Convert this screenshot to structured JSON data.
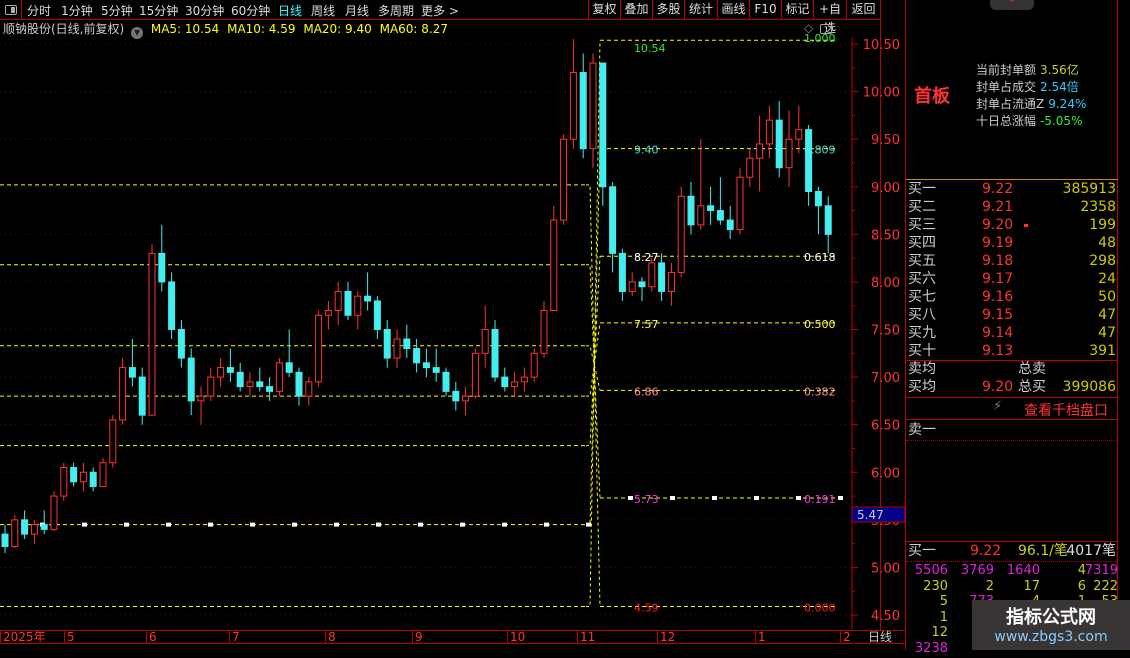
{
  "toolbar": {
    "tabs": [
      "分时",
      "1分钟",
      "5分钟",
      "15分钟",
      "30分钟",
      "60分钟",
      "日线",
      "周线",
      "月线",
      "多周期",
      "更多 >"
    ],
    "active_tab": "日线",
    "buttons": [
      "复权",
      "叠加",
      "多股",
      "统计",
      "画线",
      "F10",
      "标记",
      "+自选",
      "返回"
    ]
  },
  "info": {
    "title": "顺钠股份(日线,前复权)",
    "ma5": "MA5: 10.54",
    "ma10": "MA10: 4.59",
    "ma20": "MA20: 9.40",
    "ma60": "MA60: 8.27"
  },
  "colors": {
    "up": "#ff3333",
    "down": "#44eeee",
    "fib": "#ffff00",
    "axis": "#bb0000",
    "grid": "#660000"
  },
  "chart_data": {
    "type": "candlestick",
    "ylim": [
      4.4,
      10.65
    ],
    "yticks": [
      "10.50",
      "10.00",
      "9.50",
      "9.00",
      "8.50",
      "8.00",
      "7.50",
      "7.00",
      "6.50",
      "6.00",
      "5.50",
      "5.00",
      "4.50"
    ],
    "xticks": [
      "2025年",
      "5",
      "6",
      "7",
      "8",
      "9",
      "10",
      "11",
      "12",
      "1",
      "2"
    ],
    "period_label": "日线",
    "current_price_tag": "5.47",
    "ohlc": [
      [
        5.35,
        5.45,
        5.15,
        5.22
      ],
      [
        5.22,
        5.55,
        5.2,
        5.5
      ],
      [
        5.5,
        5.6,
        5.3,
        5.35
      ],
      [
        5.35,
        5.5,
        5.25,
        5.45
      ],
      [
        5.45,
        5.6,
        5.35,
        5.4
      ],
      [
        5.4,
        5.8,
        5.38,
        5.75
      ],
      [
        5.75,
        6.1,
        5.7,
        6.05
      ],
      [
        6.05,
        6.1,
        5.85,
        5.9
      ],
      [
        5.9,
        6.1,
        5.8,
        6.0
      ],
      [
        6.0,
        6.05,
        5.8,
        5.85
      ],
      [
        5.85,
        6.15,
        5.85,
        6.1
      ],
      [
        6.1,
        6.6,
        6.05,
        6.55
      ],
      [
        6.55,
        7.2,
        6.5,
        7.1
      ],
      [
        7.1,
        7.4,
        6.9,
        7.0
      ],
      [
        7.0,
        7.1,
        6.5,
        6.6
      ],
      [
        6.6,
        8.4,
        6.6,
        8.3
      ],
      [
        8.3,
        8.6,
        7.9,
        8.0
      ],
      [
        8.0,
        8.1,
        7.4,
        7.5
      ],
      [
        7.5,
        7.6,
        7.1,
        7.2
      ],
      [
        7.2,
        7.3,
        6.6,
        6.75
      ],
      [
        6.75,
        6.9,
        6.5,
        6.8
      ],
      [
        6.8,
        7.1,
        6.75,
        7.0
      ],
      [
        7.0,
        7.2,
        6.9,
        7.1
      ],
      [
        7.1,
        7.3,
        6.95,
        7.05
      ],
      [
        7.05,
        7.15,
        6.85,
        6.9
      ],
      [
        6.9,
        7.05,
        6.8,
        6.95
      ],
      [
        6.95,
        7.1,
        6.85,
        6.9
      ],
      [
        6.9,
        7.0,
        6.75,
        6.85
      ],
      [
        6.85,
        7.2,
        6.8,
        7.15
      ],
      [
        7.15,
        7.5,
        7.0,
        7.05
      ],
      [
        7.05,
        7.1,
        6.7,
        6.8
      ],
      [
        6.8,
        7.0,
        6.7,
        6.95
      ],
      [
        6.95,
        7.7,
        6.9,
        7.65
      ],
      [
        7.65,
        7.8,
        7.5,
        7.7
      ],
      [
        7.7,
        8.0,
        7.55,
        7.9
      ],
      [
        7.9,
        8.0,
        7.6,
        7.65
      ],
      [
        7.65,
        7.9,
        7.5,
        7.85
      ],
      [
        7.85,
        8.1,
        7.7,
        7.8
      ],
      [
        7.8,
        7.85,
        7.4,
        7.5
      ],
      [
        7.5,
        7.6,
        7.1,
        7.2
      ],
      [
        7.2,
        7.5,
        7.1,
        7.4
      ],
      [
        7.4,
        7.55,
        7.2,
        7.3
      ],
      [
        7.3,
        7.4,
        7.05,
        7.15
      ],
      [
        7.15,
        7.3,
        7.0,
        7.1
      ],
      [
        7.1,
        7.3,
        6.95,
        7.05
      ],
      [
        7.05,
        7.1,
        6.8,
        6.85
      ],
      [
        6.85,
        6.95,
        6.65,
        6.75
      ],
      [
        6.75,
        6.9,
        6.6,
        6.8
      ],
      [
        6.8,
        7.3,
        6.78,
        7.25
      ],
      [
        7.25,
        7.75,
        7.1,
        7.5
      ],
      [
        7.5,
        7.6,
        6.95,
        7.0
      ],
      [
        7.0,
        7.1,
        6.85,
        6.9
      ],
      [
        6.9,
        7.05,
        6.8,
        6.95
      ],
      [
        6.95,
        7.1,
        6.85,
        7.0
      ],
      [
        7.0,
        7.3,
        6.95,
        7.25
      ],
      [
        7.25,
        7.8,
        7.2,
        7.7
      ],
      [
        7.7,
        8.8,
        7.7,
        8.65
      ],
      [
        8.65,
        9.55,
        8.6,
        9.5
      ],
      [
        9.5,
        10.55,
        9.4,
        10.2
      ],
      [
        10.2,
        10.4,
        9.3,
        9.4
      ],
      [
        9.4,
        10.4,
        9.2,
        10.3
      ],
      [
        10.3,
        10.3,
        8.8,
        9.0
      ],
      [
        9.0,
        9.05,
        8.1,
        8.3
      ],
      [
        8.3,
        8.35,
        7.8,
        7.9
      ],
      [
        7.9,
        8.1,
        7.85,
        8.0
      ],
      [
        8.0,
        8.05,
        7.8,
        7.95
      ],
      [
        7.95,
        8.25,
        7.9,
        8.2
      ],
      [
        8.2,
        8.3,
        7.8,
        7.9
      ],
      [
        7.9,
        8.2,
        7.75,
        8.1
      ],
      [
        8.1,
        9.0,
        8.05,
        8.9
      ],
      [
        8.9,
        9.05,
        8.5,
        8.6
      ],
      [
        8.6,
        9.5,
        8.55,
        8.8
      ],
      [
        8.8,
        9.0,
        8.6,
        8.75
      ],
      [
        8.75,
        9.1,
        8.6,
        8.65
      ],
      [
        8.65,
        8.8,
        8.45,
        8.55
      ],
      [
        8.55,
        9.2,
        8.5,
        9.1
      ],
      [
        9.1,
        9.4,
        9.0,
        9.3
      ],
      [
        9.3,
        9.75,
        8.95,
        9.45
      ],
      [
        9.45,
        9.85,
        9.3,
        9.7
      ],
      [
        9.7,
        9.9,
        9.1,
        9.2
      ],
      [
        9.2,
        9.8,
        9.0,
        9.5
      ],
      [
        9.5,
        9.85,
        9.35,
        9.6
      ],
      [
        9.6,
        9.65,
        8.8,
        8.95
      ],
      [
        8.95,
        9.0,
        8.5,
        8.8
      ],
      [
        8.8,
        8.9,
        8.3,
        8.5
      ]
    ],
    "fib_prior_levels": [
      9.02,
      8.18,
      7.33,
      6.8,
      6.28,
      5.45,
      4.59
    ],
    "fib_levels": [
      {
        "price": "10.54",
        "ratio": "1.000",
        "color": "#33ee33"
      },
      {
        "price": "9.40",
        "ratio": "0.809",
        "color": "#44dddd"
      },
      {
        "price": "8.27",
        "ratio": "0.618",
        "color": "#ffffff"
      },
      {
        "price": "7.57",
        "ratio": "0.500",
        "color": "#ffff44"
      },
      {
        "price": "6.86",
        "ratio": "0.382",
        "color": "#ff9999"
      },
      {
        "price": "5.73",
        "ratio": "0.191",
        "color": "#ff33ff"
      },
      {
        "price": "4.59",
        "ratio": "0.000",
        "color": "#ff2222"
      }
    ]
  },
  "panel": {
    "badge": "首板",
    "fengdan": [
      {
        "label": "当前封单额",
        "value": "3.56亿",
        "color": "#cccc33"
      },
      {
        "label": "封单占成交",
        "value": "2.54倍",
        "color": "#33ccff"
      },
      {
        "label": "封单占流通Z",
        "value": "9.24%",
        "color": "#33ccff"
      },
      {
        "label": "十日总涨幅",
        "value": "-5.05%",
        "color": "#33ee33"
      }
    ],
    "bids": [
      {
        "label": "买一",
        "price": "9.22",
        "vol": "385913"
      },
      {
        "label": "买二",
        "price": "9.21",
        "vol": "2358"
      },
      {
        "label": "买三",
        "price": "9.20",
        "vol": "199"
      },
      {
        "label": "买四",
        "price": "9.19",
        "vol": "48"
      },
      {
        "label": "买五",
        "price": "9.18",
        "vol": "298"
      },
      {
        "label": "买六",
        "price": "9.17",
        "vol": "24"
      },
      {
        "label": "买七",
        "price": "9.16",
        "vol": "50"
      },
      {
        "label": "买八",
        "price": "9.15",
        "vol": "47"
      },
      {
        "label": "买九",
        "price": "9.14",
        "vol": "47"
      },
      {
        "label": "买十",
        "price": "9.13",
        "vol": "391"
      }
    ],
    "sell_avg_label": "卖均",
    "total_sell_label": "总卖",
    "buy_avg_label": "买均",
    "buy_avg_price": "9.20",
    "total_buy_label": "总买",
    "total_buy": "399086",
    "thousand_link": "查看千档盘口",
    "sell1_label": "卖一",
    "queue": {
      "label": "买一",
      "price": "9.22",
      "avg": "96.1/笔",
      "count": "4017笔"
    },
    "queue_rows": [
      [
        {
          "v": "5506",
          "c": "#dd22dd"
        },
        {
          "v": "3769",
          "c": "#dd22dd"
        },
        {
          "v": "1640",
          "c": "#dd22dd"
        },
        {
          "v": "4",
          "c": "#cccc22"
        },
        {
          "v": "7319",
          "c": "#dd22dd"
        }
      ],
      [
        {
          "v": "230",
          "c": "#cccc22"
        },
        {
          "v": "2",
          "c": "#cccc22"
        },
        {
          "v": "17",
          "c": "#cccc22"
        },
        {
          "v": "6",
          "c": "#cccc22"
        },
        {
          "v": "222",
          "c": "#cccc22"
        }
      ],
      [
        {
          "v": "5",
          "c": "#cccc22"
        },
        {
          "v": "773",
          "c": "#dd22dd"
        },
        {
          "v": "4",
          "c": "#cccc22"
        },
        {
          "v": "1",
          "c": "#cccc22"
        },
        {
          "v": "53",
          "c": "#cccc22"
        }
      ],
      [
        {
          "v": "1",
          "c": "#cccc22"
        }
      ],
      [
        {
          "v": "12",
          "c": "#cccc22"
        },
        {
          "v": "3",
          "c": "#cccc22"
        }
      ],
      [
        {
          "v": "3238",
          "c": "#dd22dd"
        }
      ]
    ]
  },
  "watermark": {
    "name": "指标公式网",
    "url": "www.zbgs3.com"
  }
}
